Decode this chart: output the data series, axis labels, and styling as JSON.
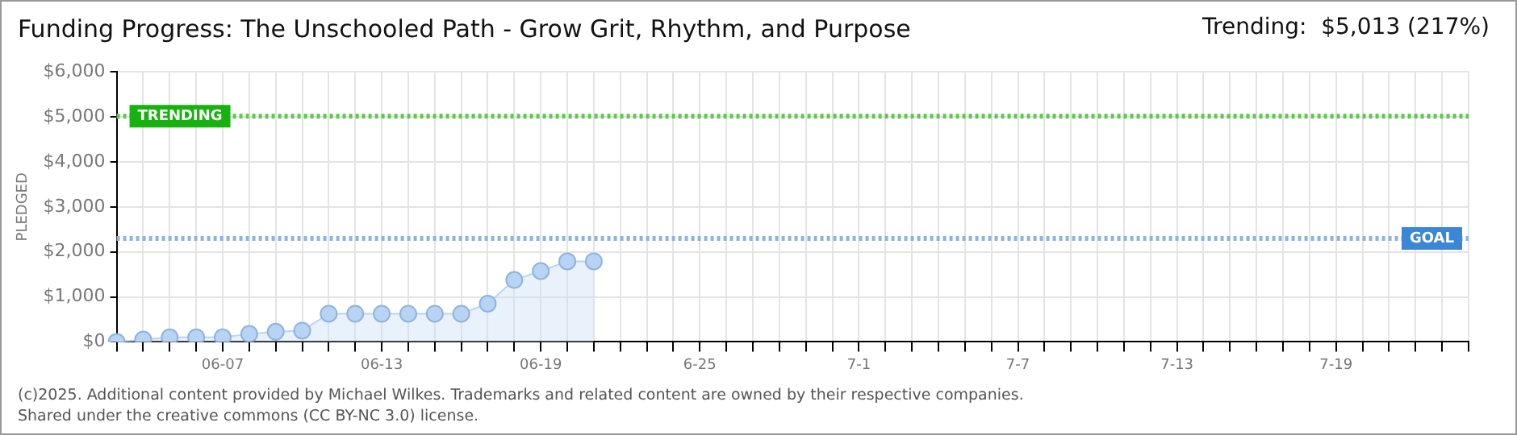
{
  "chart_data": {
    "type": "area",
    "title": "Funding Progress: The Unschooled Path - Grow Grit, Rhythm, and Purpose",
    "ylabel": "PLEDGED",
    "annotations": [
      "Trending:  $5,013 (217%)",
      "(c)2025. Additional content provided by Michael Wilkes. Trademarks and related content are owned by their respective companies.",
      "Shared under the creative commons (CC BY-NC 3.0) license."
    ],
    "categories": [
      null,
      null,
      null,
      null,
      "06-07",
      null,
      null,
      null,
      null,
      null,
      "06-13",
      null,
      null,
      null,
      null,
      null,
      "06-19",
      null,
      null,
      null,
      null,
      null,
      "6-25",
      null,
      null,
      null,
      null,
      null,
      "7-1",
      null,
      null,
      null,
      null,
      null,
      "7-7",
      null,
      null,
      null,
      null,
      null,
      "7-13",
      null,
      null,
      null,
      null,
      null,
      "7-19",
      null,
      null,
      null,
      null,
      null
    ],
    "series": [
      {
        "color": "#b8d4f4",
        "values": [
          0,
          50,
          100,
          100,
          100,
          175,
          225,
          250,
          625,
          625,
          625,
          625,
          625,
          625,
          850,
          1375,
          1575,
          1790,
          1790,
          null,
          null,
          null,
          null,
          null,
          null,
          null,
          null,
          null,
          null,
          null,
          null,
          null,
          null,
          null,
          null,
          null,
          null,
          null,
          null,
          null,
          null,
          null,
          null,
          null,
          null,
          null,
          null,
          null,
          null,
          null,
          null,
          null
        ]
      }
    ],
    "ylim": [
      0,
      6000
    ],
    "yticks": [
      {
        "value": 0,
        "label": "$0"
      },
      {
        "value": 1000,
        "label": "$1,000"
      },
      {
        "value": 2000,
        "label": "$2,000"
      },
      {
        "value": 3000,
        "label": "$3,000"
      },
      {
        "value": 4000,
        "label": "$4,000"
      },
      {
        "value": 5000,
        "label": "$5,000"
      },
      {
        "value": 6000,
        "label": "$6,000"
      }
    ],
    "ref_lines": [
      {
        "axis": "y",
        "value": 5013,
        "label": "TRENDING",
        "color": "#5cc94a",
        "line_style": "dotted"
      },
      {
        "axis": "y",
        "value": 2300,
        "label": "GOAL",
        "color": "#8fb3df",
        "line_style": "dotted"
      }
    ],
    "grid": true,
    "marker": "circle"
  }
}
